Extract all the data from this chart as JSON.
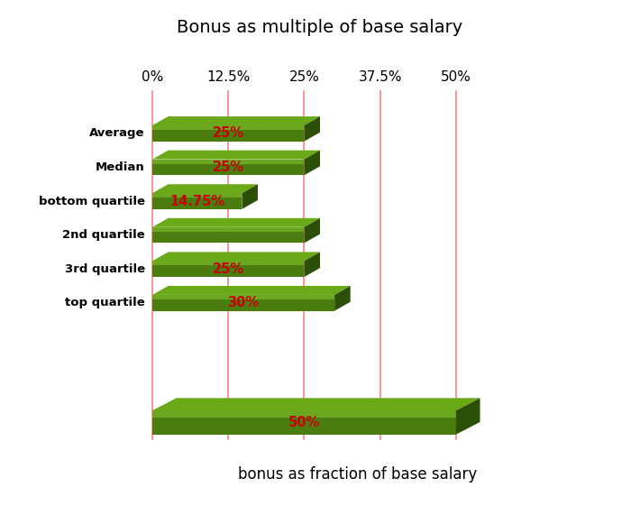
{
  "title": "Bonus as multiple of base salary",
  "xlabel": "bonus as fraction of base salary",
  "categories": [
    "Average",
    "Median",
    "bottom quartile",
    "2nd quartile",
    "3rd quartile",
    "top quartile",
    ""
  ],
  "values": [
    0.25,
    0.25,
    0.1475,
    0.25,
    0.25,
    0.3,
    0.5
  ],
  "labels": [
    "25%",
    "25%",
    "14.75%",
    "",
    "25%",
    "30%",
    "50%"
  ],
  "ref_lines": [
    0.0,
    0.125,
    0.25,
    0.375,
    0.5
  ],
  "ref_labels": [
    "0%",
    "12.5%",
    "25%",
    "37.5%",
    "50%"
  ],
  "col_front": "#4a7c10",
  "col_top": "#6aaa18",
  "col_side": "#2d5008",
  "col_highlight": "#88cc30",
  "label_color": "#cc0000",
  "ref_line_color": "#ff7777",
  "background_color": "#ffffff",
  "fig_width": 7.1,
  "fig_height": 5.61
}
